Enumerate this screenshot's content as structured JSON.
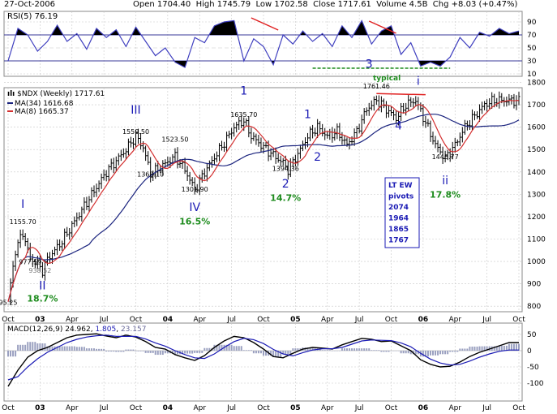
{
  "header": {
    "date": "27-Oct-2006",
    "open_label": "Open",
    "open": "1704.40",
    "high_label": "High",
    "high": "1745.79",
    "low_label": "Low",
    "low": "1702.58",
    "close_label": "Close",
    "close": "1717.61",
    "volume_label": "Volume",
    "volume": "4.5B",
    "chg_label": "Chg",
    "chg": "+8.03 (+0.47%)"
  },
  "rsi_panel": {
    "label": "RSI(5) 76.19",
    "ticks": [
      90,
      70,
      50,
      30,
      10
    ],
    "note": "typical"
  },
  "price_panel": {
    "symbol_label": "$NDX (Weekly) 1717.61",
    "ma34_label": "MA(34) 1616.68",
    "ma8_label": "MA(8) 1665.37",
    "pivot_box": [
      "LT EW",
      "pivots",
      "2074",
      "1964",
      "1865",
      "1767"
    ],
    "ticks": [
      800,
      900,
      1000,
      1100,
      1200,
      1300,
      1400,
      1500,
      1600,
      1700,
      1800
    ]
  },
  "macd_panel": {
    "label_prefix": "MACD(12,26,9) ",
    "macd_value": "24.962",
    "signal_value": "1.805",
    "hist_value": "23.157",
    "ticks": [
      50,
      0,
      -50,
      -100
    ]
  },
  "x_axis": {
    "labels": [
      "Oct",
      "03",
      "Apr",
      "Jul",
      "Oct",
      "04",
      "Apr",
      "Jul",
      "Oct",
      "05",
      "Apr",
      "Jul",
      "Oct",
      "06",
      "Apr",
      "Jul",
      "Oct"
    ]
  },
  "colors": {
    "price_bars": "#000000",
    "ma34": "#1a237e",
    "ma8": "#d32f2f",
    "wave_labels": "#1a1ab4",
    "percent_labels": "#1e8c1e",
    "rsi_line": "#3f3fbf",
    "macd_hist": "#9aa0c0",
    "grid": "#c8c8c8"
  },
  "chart_data": [
    {
      "type": "line",
      "title": "RSI(5) 76.19",
      "x_unit": "weeks since Oct 2002",
      "ylim": [
        0,
        100
      ],
      "x": [
        0,
        4,
        8,
        12,
        16,
        20,
        24,
        28,
        32,
        36,
        40,
        44,
        48,
        52,
        56,
        60,
        64,
        68,
        72,
        76,
        80,
        84,
        88,
        92,
        96,
        100,
        104,
        108,
        112,
        116,
        120,
        124,
        128,
        132,
        136,
        140,
        144,
        148,
        152,
        156,
        160,
        164,
        168,
        172,
        176,
        180,
        184,
        188,
        192,
        196,
        200,
        204,
        208
      ],
      "series": [
        {
          "name": "RSI(5)",
          "values": [
            30,
            80,
            70,
            45,
            60,
            85,
            60,
            72,
            48,
            80,
            66,
            78,
            52,
            82,
            60,
            38,
            50,
            28,
            20,
            66,
            58,
            84,
            90,
            92,
            30,
            64,
            52,
            24,
            70,
            56,
            76,
            60,
            72,
            52,
            84,
            66,
            92,
            56,
            76,
            84,
            40,
            58,
            22,
            28,
            22,
            36,
            66,
            50,
            74,
            68,
            80,
            72,
            76
          ]
        }
      ]
    },
    {
      "type": "candlestick",
      "title": "$NDX (Weekly) 1717.61",
      "x_unit": "weeks since Oct 2002",
      "ylim": [
        750,
        1830
      ],
      "ylabel": "",
      "close_pivots": [
        [
          0,
          820
        ],
        [
          3,
          1050
        ],
        [
          6,
          1130
        ],
        [
          9,
          1010
        ],
        [
          12,
          990
        ],
        [
          14,
          960
        ],
        [
          16,
          1010
        ],
        [
          22,
          1090
        ],
        [
          30,
          1230
        ],
        [
          40,
          1400
        ],
        [
          48,
          1500
        ],
        [
          52,
          1560
        ],
        [
          55,
          1510
        ],
        [
          58,
          1390
        ],
        [
          62,
          1420
        ],
        [
          68,
          1470
        ],
        [
          72,
          1410
        ],
        [
          76,
          1320
        ],
        [
          80,
          1400
        ],
        [
          88,
          1530
        ],
        [
          92,
          1600
        ],
        [
          96,
          1630
        ],
        [
          99,
          1560
        ],
        [
          104,
          1510
        ],
        [
          112,
          1440
        ],
        [
          114,
          1410
        ],
        [
          118,
          1480
        ],
        [
          122,
          1560
        ],
        [
          126,
          1600
        ],
        [
          130,
          1560
        ],
        [
          134,
          1580
        ],
        [
          138,
          1520
        ],
        [
          142,
          1580
        ],
        [
          146,
          1680
        ],
        [
          150,
          1720
        ],
        [
          154,
          1680
        ],
        [
          158,
          1640
        ],
        [
          162,
          1700
        ],
        [
          166,
          1720
        ],
        [
          170,
          1620
        ],
        [
          174,
          1520
        ],
        [
          178,
          1460
        ],
        [
          182,
          1520
        ],
        [
          186,
          1600
        ],
        [
          190,
          1650
        ],
        [
          194,
          1700
        ],
        [
          198,
          1720
        ],
        [
          208,
          1717.61
        ]
      ],
      "annotations": [
        {
          "text": "95.25",
          "x": 0,
          "y": 795
        },
        {
          "text": "1155.70",
          "x": 6,
          "y": 1155.7
        },
        {
          "text": "977.59",
          "x": 9,
          "y": 977.59
        },
        {
          "text": "938.52",
          "x": 13,
          "y": 938.52
        },
        {
          "text": "1559.50",
          "x": 52,
          "y": 1559.5
        },
        {
          "text": "1368.10",
          "x": 58,
          "y": 1368.1
        },
        {
          "text": "1523.50",
          "x": 68,
          "y": 1523.5
        },
        {
          "text": "1301.90",
          "x": 76,
          "y": 1301.9
        },
        {
          "text": "1635.70",
          "x": 96,
          "y": 1635.7
        },
        {
          "text": "1394.36",
          "x": 113,
          "y": 1394.36
        },
        {
          "text": "1761.46",
          "x": 150,
          "y": 1761.46
        },
        {
          "text": "1446.77",
          "x": 178,
          "y": 1446.77
        }
      ],
      "wave_labels": [
        {
          "text": "I",
          "x": 6,
          "y": 1240
        },
        {
          "text": "II",
          "x": 14,
          "y": 875
        },
        {
          "text": "III",
          "x": 52,
          "y": 1660
        },
        {
          "text": "IV",
          "x": 76,
          "y": 1225
        },
        {
          "text": "1",
          "x": 96,
          "y": 1745
        },
        {
          "text": "2",
          "x": 113,
          "y": 1330
        },
        {
          "text": "1",
          "x": 122,
          "y": 1640
        },
        {
          "text": "2",
          "x": 126,
          "y": 1450
        },
        {
          "text": "3",
          "x": 147,
          "y": 1865
        },
        {
          "text": "4",
          "x": 159,
          "y": 1590
        },
        {
          "text": "i",
          "x": 167,
          "y": 1790
        },
        {
          "text": "ii",
          "x": 178,
          "y": 1345
        }
      ],
      "percent_labels": [
        {
          "text": "18.7%",
          "x": 14,
          "y": 820
        },
        {
          "text": "16.5%",
          "x": 76,
          "y": 1165
        },
        {
          "text": "14.7%",
          "x": 113,
          "y": 1270
        },
        {
          "text": "17.8%",
          "x": 178,
          "y": 1285
        }
      ]
    },
    {
      "type": "line",
      "title": "MACD(12,26,9) 24.962, 1.805, 23.157",
      "x_unit": "weeks since Oct 2002",
      "ylim": [
        -125,
        65
      ],
      "x": [
        0,
        4,
        8,
        12,
        16,
        20,
        24,
        28,
        32,
        36,
        40,
        44,
        48,
        52,
        56,
        60,
        64,
        68,
        72,
        76,
        80,
        84,
        88,
        92,
        96,
        100,
        104,
        108,
        112,
        116,
        120,
        124,
        128,
        132,
        136,
        140,
        144,
        148,
        152,
        156,
        160,
        164,
        168,
        172,
        176,
        180,
        184,
        188,
        192,
        196,
        200,
        204,
        208
      ],
      "series": [
        {
          "name": "MACD",
          "values": [
            -110,
            -60,
            -20,
            0,
            10,
            25,
            40,
            48,
            50,
            52,
            45,
            40,
            48,
            42,
            28,
            10,
            5,
            -12,
            -22,
            -30,
            -15,
            10,
            30,
            44,
            40,
            25,
            5,
            -18,
            -22,
            -8,
            5,
            10,
            8,
            5,
            18,
            28,
            38,
            35,
            28,
            30,
            15,
            0,
            -28,
            -42,
            -50,
            -48,
            -35,
            -18,
            -5,
            5,
            15,
            25,
            25
          ]
        },
        {
          "name": "Signal",
          "values": [
            -90,
            -80,
            -50,
            -25,
            -5,
            10,
            25,
            35,
            42,
            46,
            48,
            44,
            44,
            44,
            36,
            24,
            14,
            0,
            -12,
            -22,
            -24,
            -10,
            10,
            28,
            38,
            34,
            22,
            4,
            -10,
            -16,
            -6,
            2,
            6,
            6,
            10,
            20,
            30,
            33,
            32,
            31,
            24,
            12,
            -8,
            -26,
            -38,
            -44,
            -42,
            -32,
            -20,
            -10,
            -2,
            2,
            2
          ]
        }
      ]
    }
  ]
}
